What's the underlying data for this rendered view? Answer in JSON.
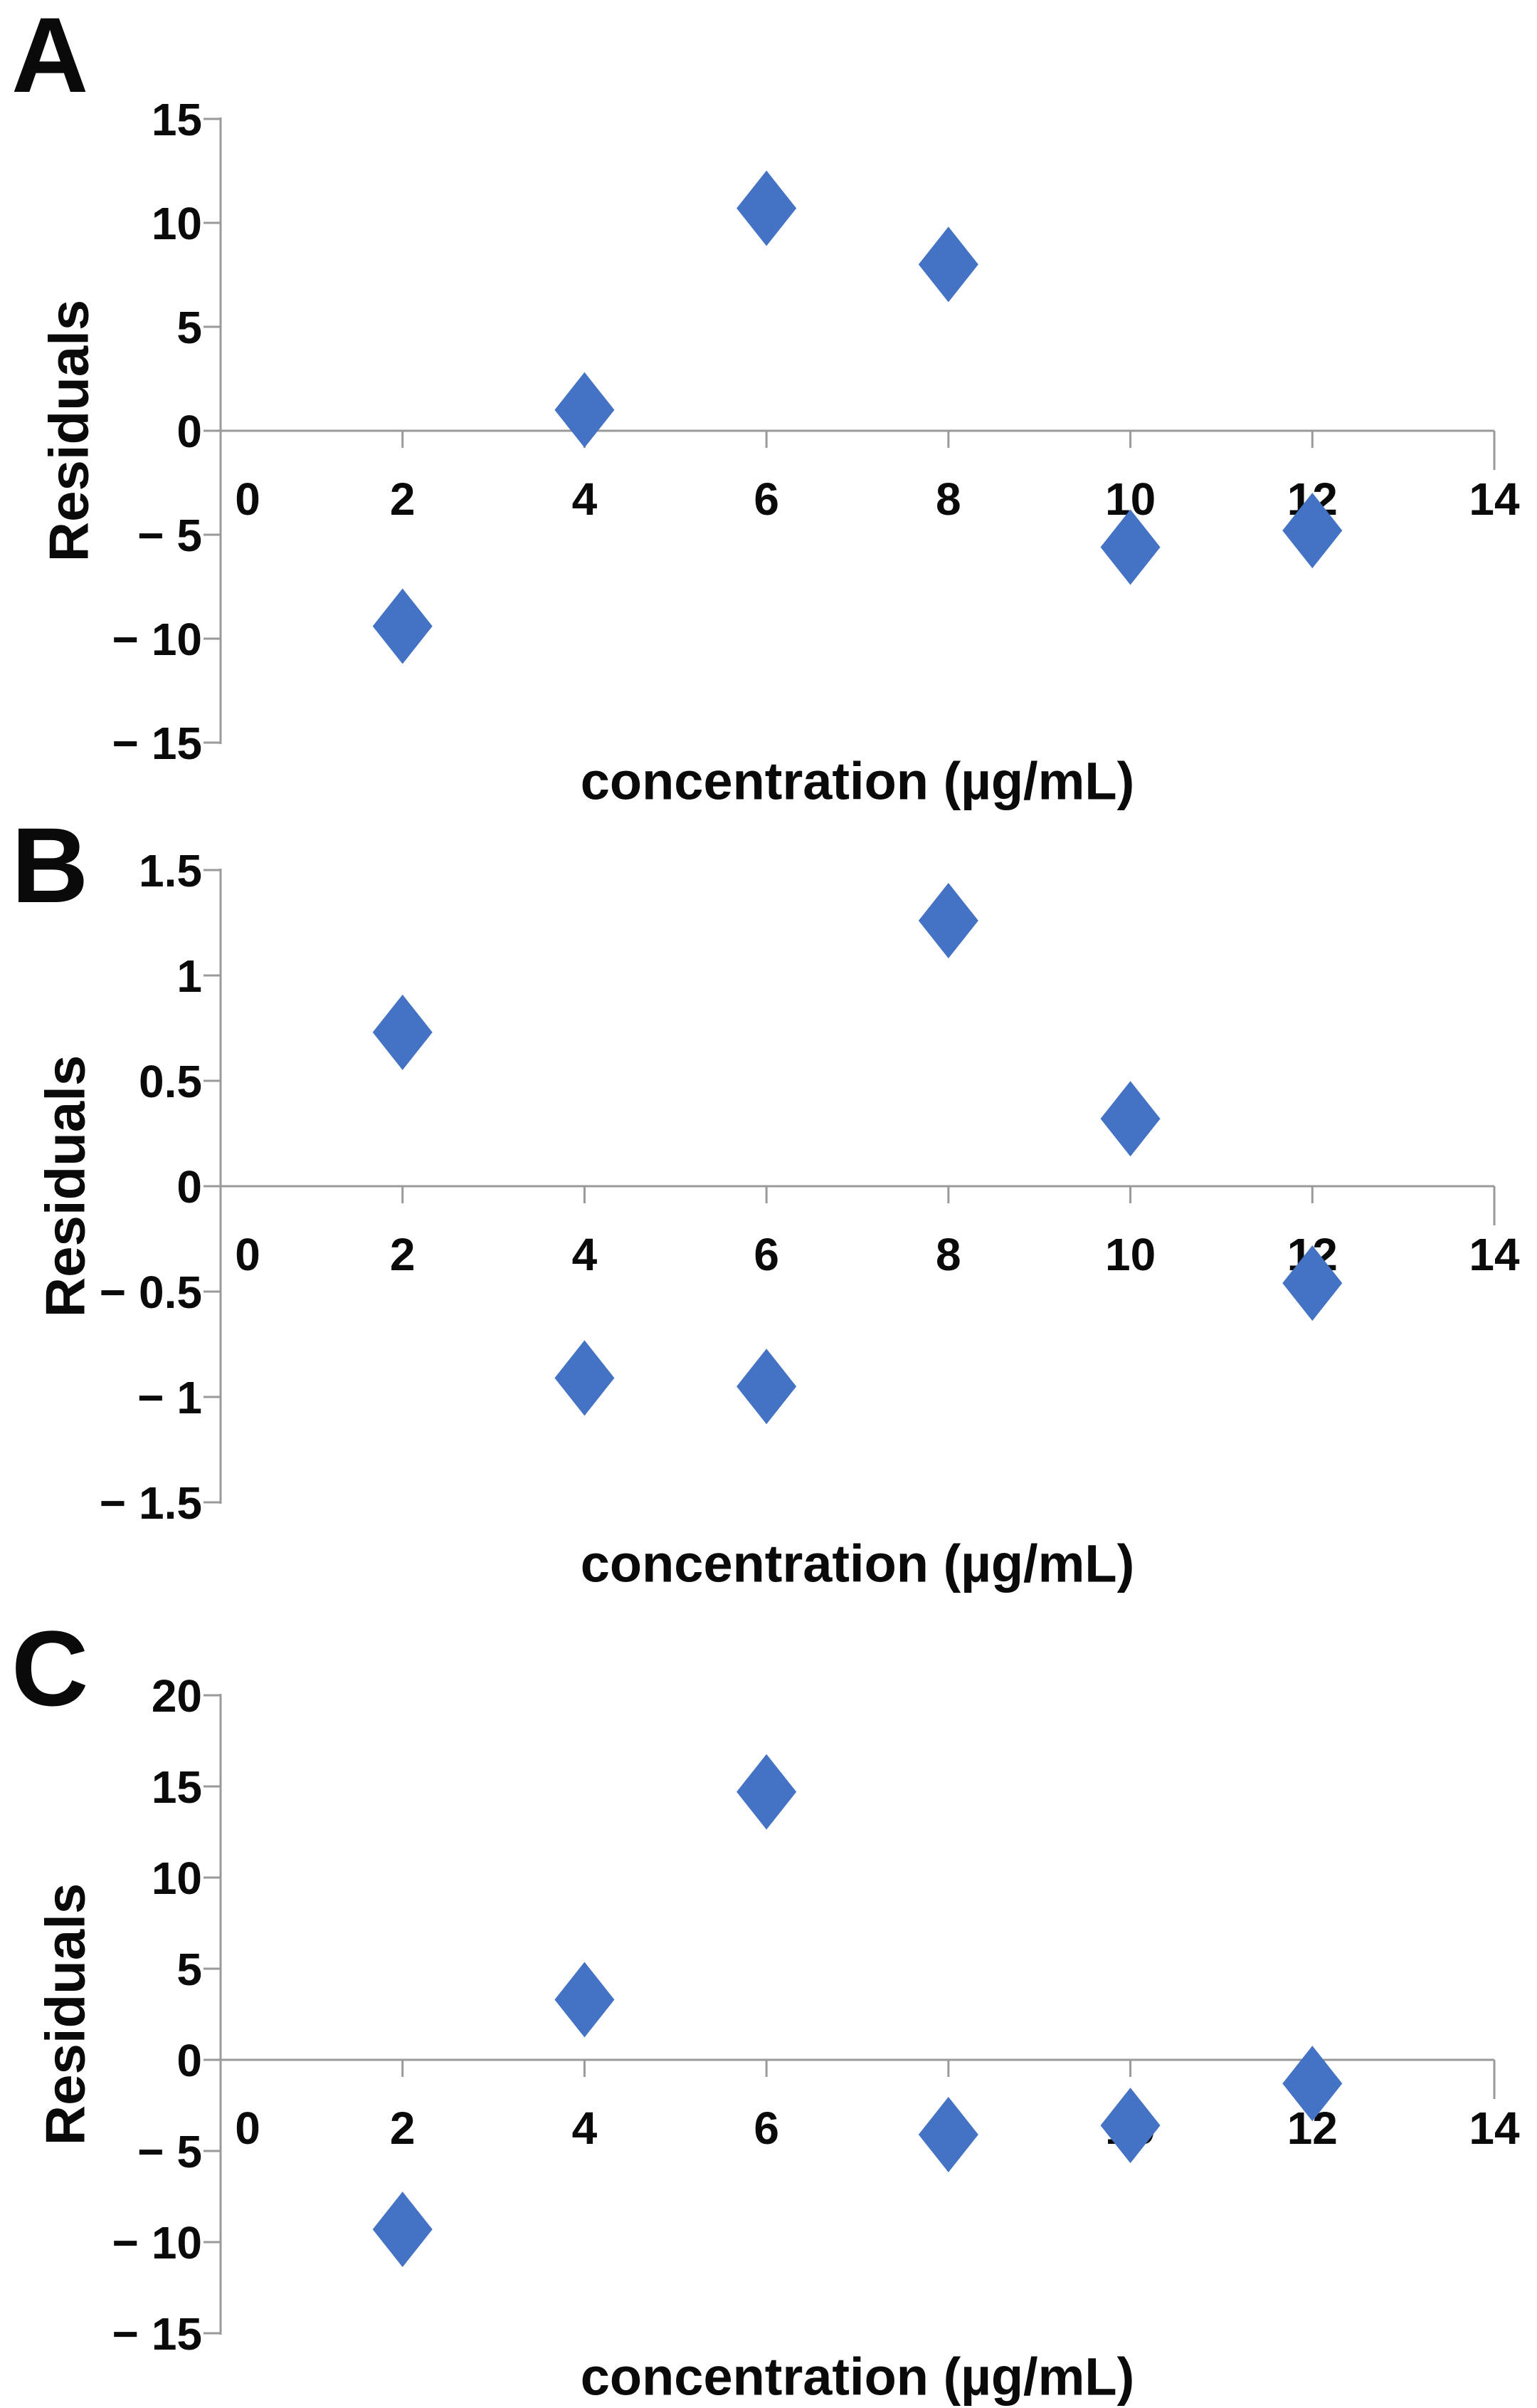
{
  "figure": {
    "background_color": "#ffffff",
    "marker_color": "#4472C4",
    "axis_line_color": "#9a9a9a",
    "text_color": "#0a0a0a",
    "marker_shape": "diamond"
  },
  "chart_data": [
    {
      "type": "scatter",
      "panel_label": "A",
      "x_axis_title": "concentration (µg/mL)",
      "y_axis_title": "Residuals",
      "xlim": [
        0,
        14
      ],
      "ylim": [
        -15,
        15
      ],
      "grid": false,
      "legend": "none",
      "x_ticks": [
        {
          "value": 0,
          "label": "0"
        },
        {
          "value": 2,
          "label": "2"
        },
        {
          "value": 4,
          "label": "4"
        },
        {
          "value": 6,
          "label": "6"
        },
        {
          "value": 8,
          "label": "8"
        },
        {
          "value": 10,
          "label": "10"
        },
        {
          "value": 12,
          "label": "12"
        },
        {
          "value": 14,
          "label": "14"
        }
      ],
      "y_ticks": [
        {
          "value": 15,
          "label": "15"
        },
        {
          "value": 10,
          "label": "10"
        },
        {
          "value": 5,
          "label": "5"
        },
        {
          "value": 0,
          "label": "0"
        },
        {
          "value": -5,
          "label": "− 5"
        },
        {
          "value": -10,
          "label": "− 10"
        },
        {
          "value": -15,
          "label": "− 15"
        }
      ],
      "points": [
        {
          "x": 2,
          "y": -9.4
        },
        {
          "x": 4,
          "y": 1.0
        },
        {
          "x": 6,
          "y": 10.7
        },
        {
          "x": 8,
          "y": 8.0
        },
        {
          "x": 10,
          "y": -5.6
        },
        {
          "x": 12,
          "y": -4.8
        }
      ]
    },
    {
      "type": "scatter",
      "panel_label": "B",
      "x_axis_title": "concentration (µg/mL)",
      "y_axis_title": "Residuals",
      "xlim": [
        0,
        14
      ],
      "ylim": [
        -1.5,
        1.5
      ],
      "grid": false,
      "legend": "none",
      "x_ticks": [
        {
          "value": 0,
          "label": "0"
        },
        {
          "value": 2,
          "label": "2"
        },
        {
          "value": 4,
          "label": "4"
        },
        {
          "value": 6,
          "label": "6"
        },
        {
          "value": 8,
          "label": "8"
        },
        {
          "value": 10,
          "label": "10"
        },
        {
          "value": 12,
          "label": "12"
        },
        {
          "value": 14,
          "label": "14"
        }
      ],
      "y_ticks": [
        {
          "value": 1.5,
          "label": "1.5"
        },
        {
          "value": 1,
          "label": "1"
        },
        {
          "value": 0.5,
          "label": "0.5"
        },
        {
          "value": 0,
          "label": "0"
        },
        {
          "value": -0.5,
          "label": "− 0.5"
        },
        {
          "value": -1,
          "label": "− 1"
        },
        {
          "value": -1.5,
          "label": "− 1.5"
        }
      ],
      "points": [
        {
          "x": 2,
          "y": 0.73
        },
        {
          "x": 4,
          "y": -0.91
        },
        {
          "x": 6,
          "y": -0.95
        },
        {
          "x": 8,
          "y": 1.26
        },
        {
          "x": 10,
          "y": 0.32
        },
        {
          "x": 12,
          "y": -0.46
        }
      ]
    },
    {
      "type": "scatter",
      "panel_label": "C",
      "x_axis_title": "concentration (µg/mL)",
      "y_axis_title": "Residuals",
      "xlim": [
        0,
        14
      ],
      "ylim": [
        -15,
        20
      ],
      "grid": false,
      "legend": "none",
      "x_ticks": [
        {
          "value": 0,
          "label": "0"
        },
        {
          "value": 2,
          "label": "2"
        },
        {
          "value": 4,
          "label": "4"
        },
        {
          "value": 6,
          "label": "6"
        },
        {
          "value": 8,
          "label": "8"
        },
        {
          "value": 10,
          "label": "10"
        },
        {
          "value": 12,
          "label": "12"
        },
        {
          "value": 14,
          "label": "14"
        }
      ],
      "y_ticks": [
        {
          "value": 20,
          "label": "20"
        },
        {
          "value": 15,
          "label": "15"
        },
        {
          "value": 10,
          "label": "10"
        },
        {
          "value": 5,
          "label": "5"
        },
        {
          "value": 0,
          "label": "0"
        },
        {
          "value": -5,
          "label": "− 5"
        },
        {
          "value": -10,
          "label": "− 10"
        },
        {
          "value": -15,
          "label": "− 15"
        }
      ],
      "points": [
        {
          "x": 2,
          "y": -9.3
        },
        {
          "x": 4,
          "y": 3.3
        },
        {
          "x": 6,
          "y": 14.7
        },
        {
          "x": 8,
          "y": -4.1
        },
        {
          "x": 10,
          "y": -3.6
        },
        {
          "x": 12,
          "y": -1.3
        }
      ]
    }
  ]
}
